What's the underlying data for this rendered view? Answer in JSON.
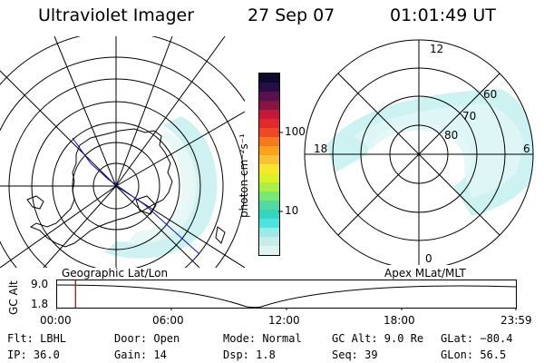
{
  "header": {
    "title": "Ultraviolet Imager",
    "date": "27 Sep 07",
    "time": "01:01:49 UT"
  },
  "colorbar": {
    "unit_label": "photon cm⁻²s⁻¹",
    "tick_labels": [
      "100",
      "10"
    ],
    "colors": [
      "#dff4f0",
      "#c9ece8",
      "#9ee8e8",
      "#4fe0e0",
      "#34d4c0",
      "#52d8a4",
      "#76e878",
      "#a7f04a",
      "#d9f227",
      "#f5e82a",
      "#f7c234",
      "#f7a21b",
      "#f57a1a",
      "#ee4a22",
      "#e02a2a",
      "#c81838",
      "#8a1440",
      "#5a104c",
      "#2a0c44",
      "#0c0830"
    ]
  },
  "geo_map": {
    "label": "Geographic Lat/Lon",
    "aurora_color": "#bfeff0"
  },
  "mag_map": {
    "label": "Apex MLat/MLT",
    "lat_labels": [
      "60",
      "70",
      "80"
    ],
    "mlt_labels": {
      "top": "12",
      "bottom": "0",
      "left": "18",
      "right": "6"
    },
    "aurora_color": "#c4f0f0"
  },
  "timeline": {
    "y_axis_label": "GC Alt",
    "y_tick_top": "9.0",
    "y_tick_bottom": "1.8",
    "x_labels": [
      "00:00",
      "06:00",
      "12:00",
      "18:00",
      "23:59"
    ],
    "current_time_fraction": 0.042,
    "marker_color": "#dd0000"
  },
  "info": {
    "flt": "Flt: LBHL",
    "ip": "IP: 36.0",
    "door": "Door: Open",
    "gain": "Gain: 14",
    "mode": "Mode: Normal",
    "dsp": "Dsp:    1.8",
    "gc_alt": "GC Alt: 9.0 Re",
    "seq": "Seq: 39",
    "glat": "GLat: −80.4",
    "glon": "GLon:  56.5"
  }
}
